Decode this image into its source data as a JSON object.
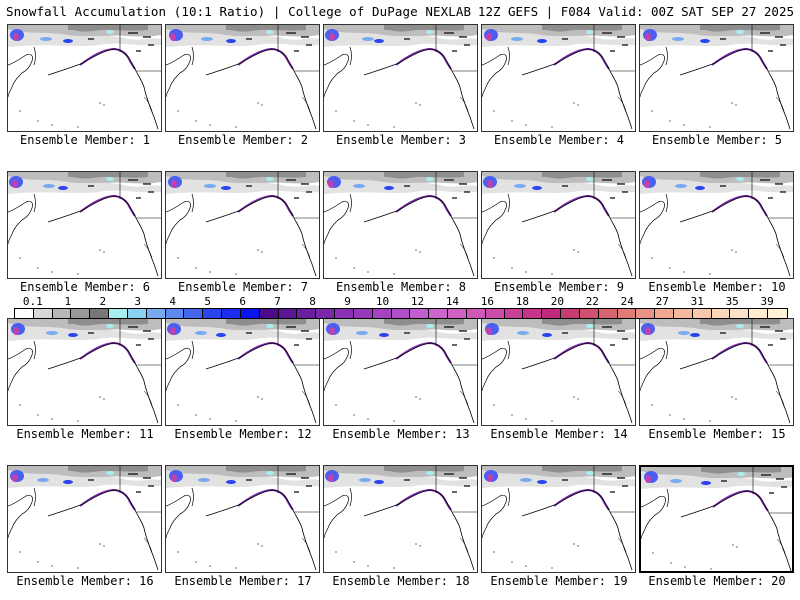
{
  "header": {
    "title_left": "Snowfall Accumulation (10:1 Ratio) | College of DuPage NEXLAB",
    "title_right": "12Z GEFS | F084 Valid: 00Z SAT SEP 27 2025"
  },
  "members": [
    {
      "label": "Ensemble Member: 1"
    },
    {
      "label": "Ensemble Member: 2"
    },
    {
      "label": "Ensemble Member: 3"
    },
    {
      "label": "Ensemble Member: 4"
    },
    {
      "label": "Ensemble Member: 5"
    },
    {
      "label": "Ensemble Member: 6"
    },
    {
      "label": "Ensemble Member: 7"
    },
    {
      "label": "Ensemble Member: 8"
    },
    {
      "label": "Ensemble Member: 9"
    },
    {
      "label": "Ensemble Member: 10"
    },
    {
      "label": "Ensemble Member: 11"
    },
    {
      "label": "Ensemble Member: 12"
    },
    {
      "label": "Ensemble Member: 13"
    },
    {
      "label": "Ensemble Member: 14"
    },
    {
      "label": "Ensemble Member: 15"
    },
    {
      "label": "Ensemble Member: 16"
    },
    {
      "label": "Ensemble Member: 17"
    },
    {
      "label": "Ensemble Member: 18"
    },
    {
      "label": "Ensemble Member: 19"
    },
    {
      "label": "Ensemble Member: 20"
    }
  ],
  "selected_member": 20,
  "colorbar": {
    "tick_labels": [
      "0.1",
      "1",
      "2",
      "3",
      "4",
      "5",
      "6",
      "7",
      "8",
      "9",
      "10",
      "12",
      "14",
      "16",
      "18",
      "20",
      "22",
      "24",
      "27",
      "31",
      "35",
      "39"
    ],
    "colors": [
      "#ffffff",
      "#d8d8d8",
      "#b8b8b8",
      "#999999",
      "#777777",
      "#a8eef0",
      "#8ad0f0",
      "#78aaf0",
      "#5e88ee",
      "#4466ee",
      "#2a44ee",
      "#1e2cf0",
      "#0a14f0",
      "#4a0a8a",
      "#5a1496",
      "#6a1ea0",
      "#7a28aa",
      "#8a30b2",
      "#9638b8",
      "#a442c0",
      "#b050c8",
      "#c060d0",
      "#cc66cc",
      "#d060c4",
      "#d058b8",
      "#cc4ca8",
      "#c8409a",
      "#c6348c",
      "#c2287c",
      "#c83c74",
      "#d05070",
      "#d86470",
      "#e07c78",
      "#e89484",
      "#f0a890",
      "#f4b89c",
      "#f8c8ac",
      "#fad6ba",
      "#fce2c8",
      "#fdeccf",
      "#fff2d8"
    ],
    "legend_placement": "middle"
  }
}
